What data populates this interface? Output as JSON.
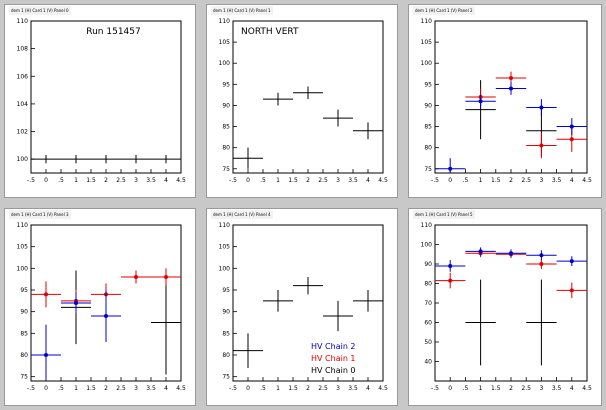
{
  "colors": {
    "chain0": "#000000",
    "chain1": "#e00000",
    "chain2": "#0000cc",
    "background": "#c8c8c8"
  },
  "chart_data": [
    {
      "id": "pad-top-left",
      "type": "scatter",
      "header": "dem 1 (H) Card 1 (V) Panel 0",
      "title": "Run 151457",
      "ylim": [
        99,
        110
      ],
      "yticks": [
        100,
        102,
        104,
        106,
        108,
        110
      ],
      "xlim": [
        -0.5,
        4.5
      ],
      "xticks": [
        -0.5,
        0,
        0.5,
        1,
        1.5,
        2,
        2.5,
        3,
        3.5,
        4,
        4.5
      ],
      "series": [
        {
          "color": "chain0",
          "points": [
            {
              "x": 0,
              "y": 100,
              "ex": 0.5,
              "ey": 0.3
            },
            {
              "x": 1,
              "y": 100,
              "ex": 0.5,
              "ey": 0.3
            },
            {
              "x": 2,
              "y": 100,
              "ex": 0.5,
              "ey": 0.3
            },
            {
              "x": 3,
              "y": 100,
              "ex": 0.5,
              "ey": 0.3
            },
            {
              "x": 4,
              "y": 100,
              "ex": 0.5,
              "ey": 0.3
            }
          ]
        }
      ]
    },
    {
      "id": "pad-top-middle",
      "type": "scatter",
      "header": "dem 1 (H) Card 1 (V) Panel 1",
      "title": "NORTH VERT",
      "ylim": [
        74,
        110
      ],
      "yticks": [
        75,
        80,
        85,
        90,
        95,
        100,
        105,
        110
      ],
      "xlim": [
        -0.5,
        4.5
      ],
      "xticks": [
        -0.5,
        0,
        0.5,
        1,
        1.5,
        2,
        2.5,
        3,
        3.5,
        4,
        4.5
      ],
      "series": [
        {
          "color": "chain0",
          "points": [
            {
              "x": 0,
              "y": 77.5,
              "ex": 0.5,
              "ey": 2.5
            },
            {
              "x": 1,
              "y": 91.5,
              "ex": 0.5,
              "ey": 1.5
            },
            {
              "x": 2,
              "y": 93,
              "ex": 0.5,
              "ey": 1.5
            },
            {
              "x": 3,
              "y": 87,
              "ex": 0.5,
              "ey": 2
            },
            {
              "x": 4,
              "y": 84,
              "ex": 0.5,
              "ey": 2
            }
          ]
        }
      ]
    },
    {
      "id": "pad-top-right",
      "type": "scatter",
      "header": "dem 1 (H) Card 1 (V) Panel 2",
      "title": "",
      "ylim": [
        74,
        110
      ],
      "yticks": [
        75,
        80,
        85,
        90,
        95,
        100,
        105,
        110
      ],
      "xlim": [
        -0.5,
        4.5
      ],
      "xticks": [
        -0.5,
        0,
        0.5,
        1,
        1.5,
        2,
        2.5,
        3,
        3.5,
        4,
        4.5
      ],
      "series": [
        {
          "color": "chain0",
          "points": [
            {
              "x": 1,
              "y": 89,
              "ex": 0.5,
              "ey": 7
            },
            {
              "x": 3,
              "y": 84,
              "ex": 0.5,
              "ey": 6
            }
          ]
        },
        {
          "color": "chain1",
          "points": [
            {
              "x": 1,
              "y": 92,
              "ex": 0.5,
              "ey": 2
            },
            {
              "x": 2,
              "y": 96.5,
              "ex": 0.5,
              "ey": 1.5
            },
            {
              "x": 3,
              "y": 80.5,
              "ex": 0.5,
              "ey": 3
            },
            {
              "x": 4,
              "y": 82,
              "ex": 0.5,
              "ey": 3
            }
          ]
        },
        {
          "color": "chain2",
          "points": [
            {
              "x": 0,
              "y": 75,
              "ex": 0.5,
              "ey": 2.5
            },
            {
              "x": 1,
              "y": 91,
              "ex": 0.5,
              "ey": 1.5
            },
            {
              "x": 2,
              "y": 94,
              "ex": 0.5,
              "ey": 1.5
            },
            {
              "x": 3,
              "y": 89.5,
              "ex": 0.5,
              "ey": 2
            },
            {
              "x": 4,
              "y": 85,
              "ex": 0.5,
              "ey": 2
            }
          ]
        }
      ]
    },
    {
      "id": "pad-bottom-left",
      "type": "scatter",
      "header": "dem 1 (H) Card 1 (V) Panel 3",
      "title": "",
      "ylim": [
        74,
        110
      ],
      "yticks": [
        75,
        80,
        85,
        90,
        95,
        100,
        105,
        110
      ],
      "xlim": [
        -0.5,
        4.5
      ],
      "xticks": [
        -0.5,
        0,
        0.5,
        1,
        1.5,
        2,
        2.5,
        3,
        3.5,
        4,
        4.5
      ],
      "series": [
        {
          "color": "chain0",
          "points": [
            {
              "x": 1,
              "y": 91,
              "ex": 0.5,
              "ey": 8.5
            },
            {
              "x": 4,
              "y": 87.5,
              "ex": 0.5,
              "ey": 12
            }
          ]
        },
        {
          "color": "chain1",
          "points": [
            {
              "x": 0,
              "y": 94,
              "ex": 0.5,
              "ey": 3
            },
            {
              "x": 1,
              "y": 92.5,
              "ex": 0.5,
              "ey": 2.5
            },
            {
              "x": 2,
              "y": 94,
              "ex": 0.5,
              "ey": 2.5
            },
            {
              "x": 3,
              "y": 98,
              "ex": 0.5,
              "ey": 1.5
            },
            {
              "x": 4,
              "y": 98,
              "ex": 0.5,
              "ey": 2
            }
          ]
        },
        {
          "color": "chain2",
          "points": [
            {
              "x": 0,
              "y": 80,
              "ex": 0.5,
              "ey": 7
            },
            {
              "x": 1,
              "y": 92,
              "ex": 0.5,
              "ey": 2.5
            },
            {
              "x": 2,
              "y": 89,
              "ex": 0.5,
              "ey": 6
            }
          ]
        }
      ]
    },
    {
      "id": "pad-bottom-middle",
      "type": "scatter",
      "header": "dem 1 (H) Card 1 (V) Panel 4",
      "title": "",
      "ylim": [
        74,
        110
      ],
      "yticks": [
        75,
        80,
        85,
        90,
        95,
        100,
        105,
        110
      ],
      "xlim": [
        -0.5,
        4.5
      ],
      "xticks": [
        -0.5,
        0,
        0.5,
        1,
        1.5,
        2,
        2.5,
        3,
        3.5,
        4,
        4.5
      ],
      "legend": [
        "HV Chain 2",
        "HV Chain 1",
        "HV Chain 0"
      ],
      "legend_colors": [
        "chain2",
        "chain1",
        "chain0"
      ],
      "series": [
        {
          "color": "chain0",
          "points": [
            {
              "x": 0,
              "y": 81,
              "ex": 0.5,
              "ey": 4
            },
            {
              "x": 1,
              "y": 92.5,
              "ex": 0.5,
              "ey": 2.5
            },
            {
              "x": 2,
              "y": 96,
              "ex": 0.5,
              "ey": 2
            },
            {
              "x": 3,
              "y": 89,
              "ex": 0.5,
              "ey": 3.5
            },
            {
              "x": 4,
              "y": 92.5,
              "ex": 0.5,
              "ey": 2.5
            }
          ]
        }
      ]
    },
    {
      "id": "pad-bottom-right",
      "type": "scatter",
      "header": "dem 1 (H) Card 1 (V) Panel 5",
      "title": "",
      "ylim": [
        30,
        110
      ],
      "yticks": [
        40,
        50,
        60,
        70,
        80,
        90,
        100,
        110
      ],
      "xlim": [
        -0.5,
        4.5
      ],
      "xticks": [
        -0.5,
        0,
        0.5,
        1,
        1.5,
        2,
        2.5,
        3,
        3.5,
        4,
        4.5
      ],
      "series": [
        {
          "color": "chain0",
          "points": [
            {
              "x": 1,
              "y": 60,
              "ex": 0.5,
              "ey": 22
            },
            {
              "x": 3,
              "y": 60,
              "ex": 0.5,
              "ey": 22
            }
          ]
        },
        {
          "color": "chain1",
          "points": [
            {
              "x": 0,
              "y": 81.5,
              "ex": 0.5,
              "ey": 4
            },
            {
              "x": 1,
              "y": 95.5,
              "ex": 0.5,
              "ey": 2
            },
            {
              "x": 2,
              "y": 95,
              "ex": 0.5,
              "ey": 2
            },
            {
              "x": 3,
              "y": 90,
              "ex": 0.5,
              "ey": 2.5
            },
            {
              "x": 4,
              "y": 76.5,
              "ex": 0.5,
              "ey": 4
            }
          ]
        },
        {
          "color": "chain2",
          "points": [
            {
              "x": 0,
              "y": 89,
              "ex": 0.5,
              "ey": 3
            },
            {
              "x": 1,
              "y": 96.5,
              "ex": 0.5,
              "ey": 2
            },
            {
              "x": 2,
              "y": 95.5,
              "ex": 0.5,
              "ey": 2
            },
            {
              "x": 3,
              "y": 94.5,
              "ex": 0.5,
              "ey": 2.5
            },
            {
              "x": 4,
              "y": 91.5,
              "ex": 0.5,
              "ey": 2.5
            }
          ]
        }
      ]
    }
  ]
}
